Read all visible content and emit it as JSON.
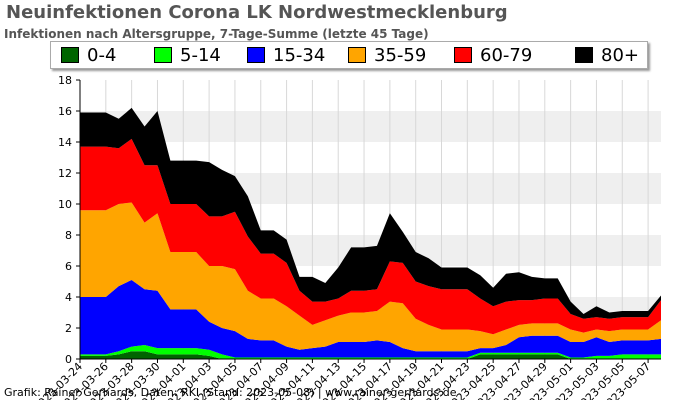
{
  "title": "Neuinfektionen Corona LK Nordwestmecklenburg",
  "subtitle": "Infektionen nach Altersgruppe, 7-Tage-Summe (letzte 45 Tage)",
  "credit": "Grafik: Rainer Gerhards, Daten: RKI (Stand: 2023-05-08) | www.rainer-gerhards.de",
  "chart_data": {
    "type": "area",
    "stacked": true,
    "ylim": [
      0,
      18
    ],
    "yticks": [
      0,
      2,
      4,
      6,
      8,
      10,
      12,
      14,
      16,
      18
    ],
    "grid": "alternating horizontal bands",
    "legend_position": "top",
    "x": [
      "2023-03-24",
      "2023-03-25",
      "2023-03-26",
      "2023-03-27",
      "2023-03-28",
      "2023-03-29",
      "2023-03-30",
      "2023-03-31",
      "2023-04-01",
      "2023-04-02",
      "2023-04-03",
      "2023-04-04",
      "2023-04-05",
      "2023-04-06",
      "2023-04-07",
      "2023-04-08",
      "2023-04-09",
      "2023-04-10",
      "2023-04-11",
      "2023-04-12",
      "2023-04-13",
      "2023-04-14",
      "2023-04-15",
      "2023-04-16",
      "2023-04-17",
      "2023-04-18",
      "2023-04-19",
      "2023-04-20",
      "2023-04-21",
      "2023-04-22",
      "2023-04-23",
      "2023-04-24",
      "2023-04-25",
      "2023-04-26",
      "2023-04-27",
      "2023-04-28",
      "2023-04-29",
      "2023-04-30",
      "2023-05-01",
      "2023-05-02",
      "2023-05-03",
      "2023-05-04",
      "2023-05-05",
      "2023-05-06",
      "2023-05-07",
      "2023-05-08"
    ],
    "xtick_labels": [
      "2023-03-24",
      "2023-03-26",
      "2023-03-28",
      "2023-03-30",
      "2023-04-01",
      "2023-04-03",
      "2023-04-05",
      "2023-04-07",
      "2023-04-09",
      "2023-04-11",
      "2023-04-13",
      "2023-04-15",
      "2023-04-17",
      "2023-04-19",
      "2023-04-21",
      "2023-04-23",
      "2023-04-25",
      "2023-04-27",
      "2023-04-29",
      "2023-05-01",
      "2023-05-03",
      "2023-05-05",
      "2023-05-07"
    ],
    "series": [
      {
        "name": "0-4",
        "color": "#006400",
        "values": [
          0.2,
          0.2,
          0.2,
          0.3,
          0.5,
          0.5,
          0.3,
          0.3,
          0.3,
          0.3,
          0.2,
          0,
          0,
          0,
          0,
          0,
          0,
          0,
          0,
          0,
          0,
          0,
          0,
          0,
          0,
          0,
          0,
          0,
          0,
          0,
          0,
          0.3,
          0.3,
          0.3,
          0.3,
          0.3,
          0.3,
          0.3,
          0,
          0,
          0,
          0,
          0,
          0,
          0,
          0
        ]
      },
      {
        "name": "5-14",
        "color": "#00ff00",
        "values": [
          0.1,
          0.1,
          0.1,
          0.2,
          0.3,
          0.4,
          0.4,
          0.4,
          0.4,
          0.4,
          0.4,
          0.3,
          0.1,
          0.1,
          0.1,
          0.1,
          0.1,
          0.1,
          0.1,
          0.1,
          0.1,
          0.1,
          0.1,
          0.1,
          0.1,
          0.1,
          0.1,
          0.1,
          0.1,
          0.1,
          0.1,
          0.1,
          0.1,
          0.1,
          0.1,
          0.1,
          0.1,
          0.1,
          0.1,
          0.1,
          0.2,
          0.2,
          0.3,
          0.3,
          0.3,
          0.3
        ]
      },
      {
        "name": "15-34",
        "color": "#0000ff",
        "values": [
          3.7,
          3.7,
          3.7,
          4.2,
          4.3,
          3.6,
          3.7,
          2.5,
          2.5,
          2.5,
          1.8,
          1.7,
          1.7,
          1.2,
          1.1,
          1.1,
          0.7,
          0.5,
          0.6,
          0.7,
          1.0,
          1.0,
          1.0,
          1.1,
          1.0,
          0.6,
          0.4,
          0.4,
          0.4,
          0.4,
          0.4,
          0.3,
          0.3,
          0.5,
          1.0,
          1.1,
          1.1,
          1.1,
          1.0,
          1.0,
          1.2,
          0.9,
          0.9,
          0.9,
          0.9,
          1.0
        ]
      },
      {
        "name": "35-59",
        "color": "#ffa500",
        "values": [
          5.6,
          5.6,
          5.6,
          5.3,
          5.0,
          4.3,
          5.0,
          3.7,
          3.7,
          3.7,
          3.6,
          4.0,
          4.0,
          3.1,
          2.7,
          2.7,
          2.6,
          2.2,
          1.5,
          1.7,
          1.7,
          1.9,
          1.9,
          1.9,
          2.6,
          2.9,
          2.1,
          1.7,
          1.4,
          1.4,
          1.4,
          1.1,
          0.9,
          1.0,
          0.8,
          0.8,
          0.8,
          0.8,
          0.8,
          0.6,
          0.5,
          0.7,
          0.7,
          0.7,
          0.7,
          1.2
        ]
      },
      {
        "name": "60-79",
        "color": "#ff0000",
        "values": [
          4.1,
          4.1,
          4.1,
          3.6,
          4.1,
          3.7,
          3.1,
          3.1,
          3.1,
          3.1,
          3.2,
          3.2,
          3.7,
          3.5,
          2.9,
          2.9,
          2.8,
          1.6,
          1.5,
          1.2,
          1.1,
          1.4,
          1.4,
          1.4,
          2.6,
          2.6,
          2.4,
          2.5,
          2.6,
          2.6,
          2.6,
          2.1,
          1.8,
          1.8,
          1.6,
          1.5,
          1.6,
          1.6,
          1.0,
          0.9,
          0.8,
          0.8,
          0.8,
          0.8,
          0.8,
          1.3
        ]
      },
      {
        "name": "80+",
        "color": "#000000",
        "values": [
          2.2,
          2.2,
          2.2,
          1.9,
          2.0,
          2.5,
          3.5,
          2.8,
          2.8,
          2.8,
          3.5,
          3.0,
          2.3,
          2.6,
          1.5,
          1.5,
          1.5,
          0.9,
          1.6,
          1.2,
          2.0,
          2.8,
          2.8,
          2.8,
          3.1,
          2.0,
          1.9,
          1.8,
          1.4,
          1.4,
          1.4,
          1.5,
          1.2,
          1.8,
          1.8,
          1.5,
          1.3,
          1.3,
          0.8,
          0.3,
          0.7,
          0.4,
          0.4,
          0.4,
          0.4,
          0.3
        ]
      }
    ]
  }
}
